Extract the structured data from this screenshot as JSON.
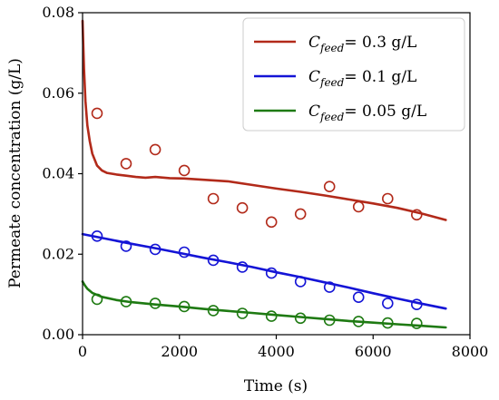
{
  "chart_data": {
    "type": "line",
    "title": "",
    "xlabel": "Time (s)",
    "ylabel": "Permeate concentration (g/L)",
    "xlim": [
      0,
      8000
    ],
    "ylim": [
      0,
      0.08
    ],
    "xticks": [
      0,
      2000,
      4000,
      6000,
      8000
    ],
    "xtick_labels": [
      "0",
      "2000",
      "4000",
      "6000",
      "8000"
    ],
    "yticks": [
      0,
      0.02,
      0.04,
      0.06,
      0.08
    ],
    "ytick_labels": [
      "0.00",
      "0.02",
      "0.04",
      "0.06",
      "0.08"
    ],
    "grid": false,
    "legend_position": "top-right",
    "series": [
      {
        "name_prefix": "C",
        "name_subscript": "feed",
        "name_suffix": "= 0.3 g/L",
        "color": "#b22a1a",
        "line": {
          "x": [
            0,
            30,
            60,
            100,
            150,
            200,
            300,
            400,
            500,
            700,
            900,
            1100,
            1300,
            1500,
            1800,
            2100,
            2500,
            3000,
            3500,
            4000,
            4500,
            5000,
            5500,
            6000,
            6500,
            7000,
            7500
          ],
          "y": [
            0.078,
            0.066,
            0.058,
            0.052,
            0.048,
            0.045,
            0.042,
            0.0408,
            0.0402,
            0.0398,
            0.0395,
            0.0392,
            0.039,
            0.0392,
            0.0389,
            0.0388,
            0.0385,
            0.0381,
            0.0372,
            0.0363,
            0.0355,
            0.0346,
            0.0336,
            0.0326,
            0.0315,
            0.0301,
            0.0285
          ]
        },
        "markers": {
          "x": [
            300,
            900,
            1500,
            2100,
            2700,
            3300,
            3900,
            4500,
            5100,
            5700,
            6300,
            6900
          ],
          "y": [
            0.055,
            0.0425,
            0.046,
            0.0408,
            0.0338,
            0.0315,
            0.028,
            0.03,
            0.0368,
            0.0318,
            0.0338,
            0.0298
          ]
        }
      },
      {
        "name_prefix": "C",
        "name_subscript": "feed",
        "name_suffix": "= 0.1 g/L",
        "color": "#1414d6",
        "line": {
          "x": [
            0,
            500,
            1000,
            1500,
            2000,
            2500,
            3000,
            3500,
            4000,
            4500,
            5000,
            5500,
            6000,
            6500,
            7000,
            7500
          ],
          "y": [
            0.025,
            0.0238,
            0.0226,
            0.0215,
            0.0203,
            0.0191,
            0.018,
            0.0168,
            0.0155,
            0.0143,
            0.013,
            0.0117,
            0.0103,
            0.009,
            0.0077,
            0.0065
          ]
        },
        "markers": {
          "x": [
            300,
            900,
            1500,
            2100,
            2700,
            3300,
            3900,
            4500,
            5100,
            5700,
            6300,
            6900
          ],
          "y": [
            0.0245,
            0.022,
            0.0212,
            0.0205,
            0.0185,
            0.0168,
            0.0153,
            0.0132,
            0.0118,
            0.0093,
            0.0078,
            0.0075
          ]
        }
      },
      {
        "name_prefix": "C",
        "name_subscript": "feed",
        "name_suffix": "= 0.05 g/L",
        "color": "#1e7a12",
        "line": {
          "x": [
            0,
            50,
            100,
            200,
            400,
            700,
            1000,
            1500,
            2000,
            2500,
            3000,
            3500,
            4000,
            4500,
            5000,
            5500,
            6000,
            6500,
            7000,
            7500
          ],
          "y": [
            0.0132,
            0.0122,
            0.0114,
            0.0104,
            0.0094,
            0.0086,
            0.0081,
            0.0075,
            0.007,
            0.0064,
            0.0059,
            0.0054,
            0.0049,
            0.0044,
            0.0039,
            0.0034,
            0.003,
            0.0026,
            0.0022,
            0.0018
          ]
        },
        "markers": {
          "x": [
            300,
            900,
            1500,
            2100,
            2700,
            3300,
            3900,
            4500,
            5100,
            5700,
            6300,
            6900
          ],
          "y": [
            0.0088,
            0.0082,
            0.0078,
            0.007,
            0.006,
            0.0053,
            0.0046,
            0.0041,
            0.0036,
            0.0033,
            0.0029,
            0.0028
          ]
        }
      }
    ]
  }
}
